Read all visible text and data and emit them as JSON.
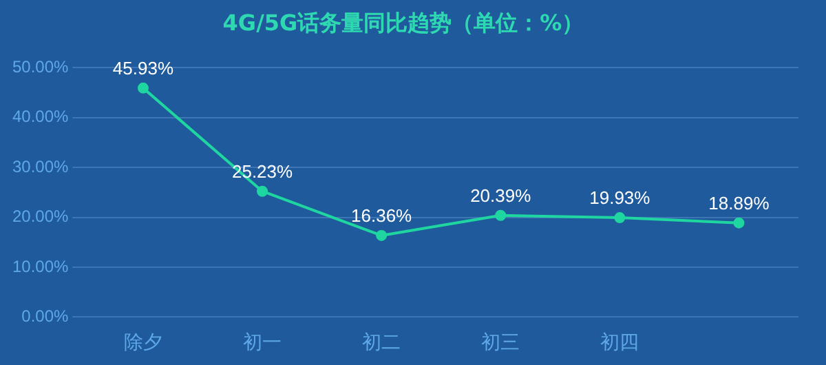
{
  "chart_data": {
    "type": "line",
    "title": "4G/5G话务量同比趋势（单位：%）",
    "categories": [
      "除夕",
      "初一",
      "初二",
      "初三",
      "初四",
      null
    ],
    "series": [
      {
        "color": "#1fd6a0",
        "values": [
          45.93,
          25.23,
          16.36,
          20.39,
          19.93,
          18.89
        ],
        "value_labels": [
          "45.93%",
          "25.23%",
          "16.36%",
          "20.39%",
          "19.93%",
          "18.89%"
        ]
      }
    ],
    "ylim": [
      0,
      50
    ],
    "yticks": [
      {
        "value": 0,
        "label": "0.00%"
      },
      {
        "value": 10,
        "label": "10.00%"
      },
      {
        "value": 20,
        "label": "20.00%"
      },
      {
        "value": 30,
        "label": "30.00%"
      },
      {
        "value": 40,
        "label": "40.00%"
      },
      {
        "value": 50,
        "label": "50.00%"
      }
    ],
    "grid": "y",
    "marker": "circle",
    "line_style": "solid",
    "legend": false
  }
}
